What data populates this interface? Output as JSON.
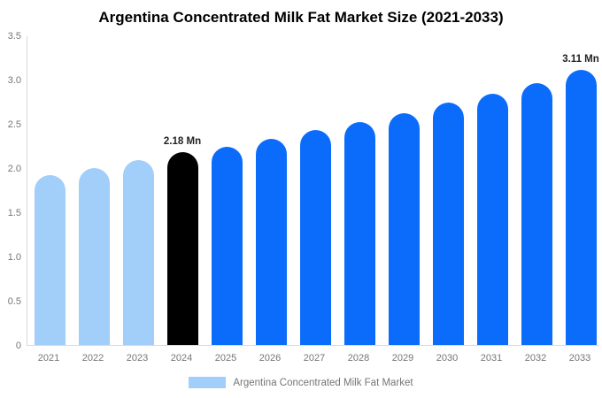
{
  "title": "Argentina Concentrated Milk Fat Market Size (2021-2033)",
  "legend": {
    "label": "Argentina Concentrated Milk Fat Market",
    "swatch_color": "#a2cefa"
  },
  "colors": {
    "historical_bar": "#a2cefa",
    "base_year_bar": "#000000",
    "forecast_bar": "#0b6cfb",
    "axis_line": "#d9d9d9",
    "tick_text": "#757575",
    "data_label_text": "#222222",
    "title_text": "#000000",
    "background": "#ffffff"
  },
  "chart_data": {
    "type": "bar",
    "title": "Argentina Concentrated Milk Fat Market Size (2021-2033)",
    "xlabel": "",
    "ylabel": "",
    "unit": "Mn",
    "categories": [
      "2021",
      "2022",
      "2023",
      "2024",
      "2025",
      "2026",
      "2027",
      "2028",
      "2029",
      "2030",
      "2031",
      "2032",
      "2033"
    ],
    "values": [
      1.92,
      2.0,
      2.09,
      2.18,
      2.24,
      2.33,
      2.43,
      2.52,
      2.62,
      2.74,
      2.84,
      2.96,
      3.11
    ],
    "bar_roles": [
      "historical",
      "historical",
      "historical",
      "base_year",
      "forecast",
      "forecast",
      "forecast",
      "forecast",
      "forecast",
      "forecast",
      "forecast",
      "forecast",
      "forecast"
    ],
    "annotations": [
      {
        "category": "2024",
        "text": "2.18 Mn"
      },
      {
        "category": "2033",
        "text": "3.11 Mn"
      }
    ],
    "ylim": [
      0,
      3.5
    ],
    "ytick_labels": [
      "3.5",
      "3.0",
      "2.5",
      "2.0",
      "1.5",
      "1.0",
      "0.5",
      "0"
    ],
    "ytick_values": [
      3.5,
      3.0,
      2.5,
      2.0,
      1.5,
      1.0,
      0.5,
      0
    ],
    "grid": false,
    "legend_position": "bottom"
  }
}
